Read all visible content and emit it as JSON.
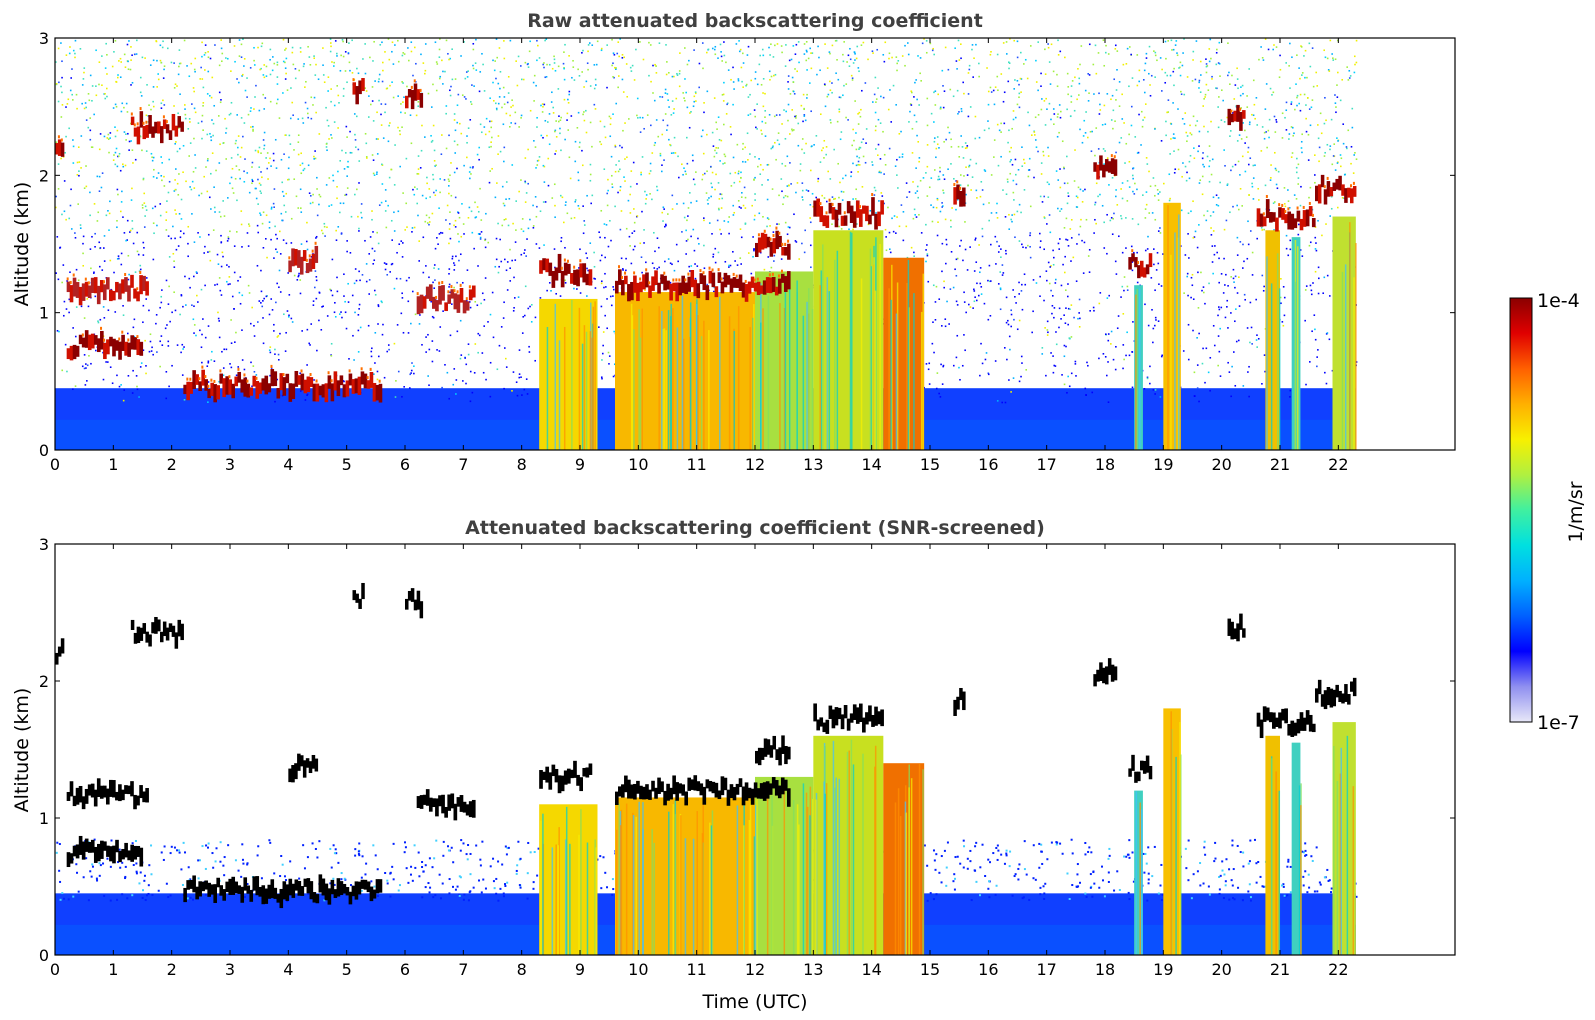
{
  "chart_data": [
    {
      "type": "heatmap",
      "title": "Raw attenuated backscattering coefficient",
      "xlabel": "",
      "ylabel": "Altitude (km)",
      "xlim": [
        0,
        24
      ],
      "ylim": [
        0,
        3
      ],
      "x_ticks": [
        0,
        1,
        2,
        3,
        4,
        5,
        6,
        7,
        8,
        9,
        10,
        11,
        12,
        13,
        14,
        15,
        16,
        17,
        18,
        19,
        20,
        21,
        22
      ],
      "y_ticks": [
        0,
        1,
        2,
        3
      ],
      "data_end_hour": 22.3,
      "background_fill": "blue near ground, noisy speckle above",
      "cloud_layers": [
        {
          "t0": 0.0,
          "t1": 0.15,
          "alt": 2.2,
          "color": "#8b0000"
        },
        {
          "t0": 1.3,
          "t1": 2.2,
          "alt": 2.35,
          "color": "#8b0000"
        },
        {
          "t0": 5.1,
          "t1": 5.3,
          "alt": 2.62,
          "color": "#8b0000"
        },
        {
          "t0": 6.0,
          "t1": 6.3,
          "alt": 2.58,
          "color": "#8b0000"
        },
        {
          "t0": 0.2,
          "t1": 1.5,
          "alt": 0.75,
          "color": "#8b0000"
        },
        {
          "t0": 2.2,
          "t1": 5.6,
          "alt": 0.47,
          "color": "#8b0000"
        },
        {
          "t0": 0.2,
          "t1": 1.6,
          "alt": 1.17,
          "color": "#b22222"
        },
        {
          "t0": 4.0,
          "t1": 4.5,
          "alt": 1.37,
          "color": "#b22222"
        },
        {
          "t0": 6.2,
          "t1": 7.2,
          "alt": 1.1,
          "color": "#b22222"
        },
        {
          "t0": 8.3,
          "t1": 9.2,
          "alt": 1.3,
          "color": "#8b0000"
        },
        {
          "t0": 9.6,
          "t1": 12.6,
          "alt": 1.2,
          "color": "#8b0000"
        },
        {
          "t0": 12.0,
          "t1": 12.6,
          "alt": 1.5,
          "color": "#8b0000"
        },
        {
          "t0": 13.0,
          "t1": 14.2,
          "alt": 1.72,
          "color": "#8b0000"
        },
        {
          "t0": 15.4,
          "t1": 15.6,
          "alt": 1.85,
          "color": "#8b0000"
        },
        {
          "t0": 17.8,
          "t1": 18.2,
          "alt": 2.05,
          "color": "#8b0000"
        },
        {
          "t0": 18.4,
          "t1": 18.8,
          "alt": 1.35,
          "color": "#8b0000"
        },
        {
          "t0": 20.1,
          "t1": 20.4,
          "alt": 2.4,
          "color": "#8b0000"
        },
        {
          "t0": 20.6,
          "t1": 21.6,
          "alt": 1.7,
          "color": "#8b0000"
        },
        {
          "t0": 21.6,
          "t1": 22.3,
          "alt": 1.9,
          "color": "#8b0000"
        }
      ],
      "columns": [
        {
          "t0": 8.3,
          "t1": 9.3,
          "top": 1.1,
          "color": "#f5d800"
        },
        {
          "t0": 9.6,
          "t1": 12.0,
          "top": 1.15,
          "color": "#f8b800"
        },
        {
          "t0": 12.0,
          "t1": 13.0,
          "top": 1.3,
          "color": "#a8e040"
        },
        {
          "t0": 13.0,
          "t1": 14.2,
          "top": 1.6,
          "color": "#c8e020"
        },
        {
          "t0": 14.2,
          "t1": 14.9,
          "top": 1.4,
          "color": "#f07000"
        },
        {
          "t0": 18.5,
          "t1": 18.65,
          "top": 1.2,
          "color": "#40d0c0"
        },
        {
          "t0": 19.0,
          "t1": 19.3,
          "top": 1.8,
          "color": "#f8c000"
        },
        {
          "t0": 20.75,
          "t1": 21.0,
          "top": 1.6,
          "color": "#f0c000"
        },
        {
          "t0": 21.2,
          "t1": 21.35,
          "top": 1.55,
          "color": "#40d0c0"
        },
        {
          "t0": 21.9,
          "t1": 22.3,
          "top": 1.7,
          "color": "#c0e030"
        }
      ]
    },
    {
      "type": "heatmap",
      "title": "Attenuated backscattering coefficient (SNR-screened)",
      "xlabel": "Time (UTC)",
      "ylabel": "Altitude (km)",
      "xlim": [
        0,
        24
      ],
      "ylim": [
        0,
        3
      ],
      "x_ticks": [
        0,
        1,
        2,
        3,
        4,
        5,
        6,
        7,
        8,
        9,
        10,
        11,
        12,
        13,
        14,
        15,
        16,
        17,
        18,
        19,
        20,
        21,
        22
      ],
      "y_ticks": [
        0,
        1,
        2,
        3
      ],
      "data_end_hour": 22.3,
      "background_fill": "blue boundary layer, white screened-out region above",
      "cloud_layers_color": "#000000"
    }
  ],
  "colorbar": {
    "label": "1/m/sr",
    "min_label": "1e-7",
    "max_label": "1e-4",
    "scale": "log",
    "colors": [
      "#e8e8f8",
      "#9090f0",
      "#0000ff",
      "#0060ff",
      "#00b0ff",
      "#00e0e0",
      "#40f0a0",
      "#b0f040",
      "#f8f000",
      "#ffb000",
      "#ff6000",
      "#e00000",
      "#8b0000"
    ]
  }
}
